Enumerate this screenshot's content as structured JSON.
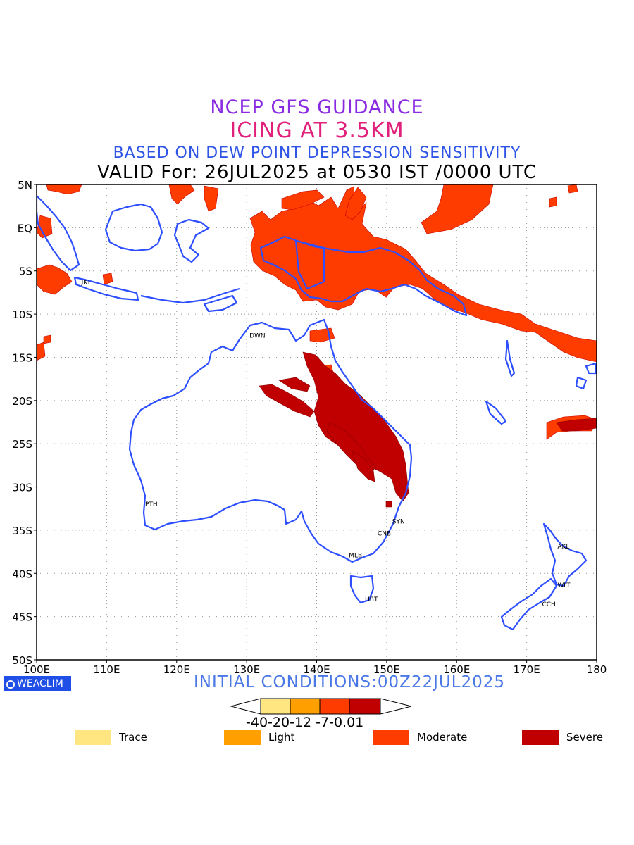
{
  "titles": {
    "line1": "NCEP GFS GUIDANCE",
    "line2": "ICING AT 3.5KM",
    "line3": "BASED ON DEW POINT DEPRESSION SENSITIVITY",
    "line4": "VALID For: 26JUL2025 at 0530 IST /0000 UTC"
  },
  "map": {
    "lon_range": [
      100,
      180
    ],
    "lat_range": [
      -50,
      5
    ],
    "lat_labels": [
      "5N",
      "EQ",
      "5S",
      "10S",
      "15S",
      "20S",
      "25S",
      "30S",
      "35S",
      "40S",
      "45S",
      "50S"
    ],
    "lon_labels": [
      "100E",
      "110E",
      "120E",
      "130E",
      "140E",
      "150E",
      "160E",
      "170E",
      "180"
    ],
    "grid": "dotted",
    "coastline_color": "#2d4fff",
    "cities": [
      {
        "code": "JKT",
        "lon": 106.8,
        "lat": -6.2
      },
      {
        "code": "DWN",
        "lon": 130.8,
        "lat": -12.4
      },
      {
        "code": "PTH",
        "lon": 115.9,
        "lat": -31.9
      },
      {
        "code": "SYN",
        "lon": 151.2,
        "lat": -33.9
      },
      {
        "code": "CNB",
        "lon": 149.1,
        "lat": -35.3
      },
      {
        "code": "MLB",
        "lon": 145.0,
        "lat": -37.8
      },
      {
        "code": "HBT",
        "lon": 147.3,
        "lat": -42.9
      },
      {
        "code": "AKL",
        "lon": 174.8,
        "lat": -36.8
      },
      {
        "code": "WLT",
        "lon": 174.8,
        "lat": -41.3
      },
      {
        "code": "CCH",
        "lon": 172.6,
        "lat": -43.5
      }
    ]
  },
  "footer": {
    "brand": "WEACLIM",
    "initial_conditions": "INITIAL CONDITIONS:00Z22JUL2025"
  },
  "colorbar": {
    "labels": "-40-20-12 -7-0.01",
    "colors": [
      "#ffe680",
      "#ffa000",
      "#ff3c00",
      "#c00000"
    ]
  },
  "legend": [
    {
      "label": "Trace",
      "color": "#ffe680"
    },
    {
      "label": "Light",
      "color": "#ffa000"
    },
    {
      "label": "Moderate",
      "color": "#ff3c00"
    },
    {
      "label": "Severe",
      "color": "#c00000"
    }
  ]
}
